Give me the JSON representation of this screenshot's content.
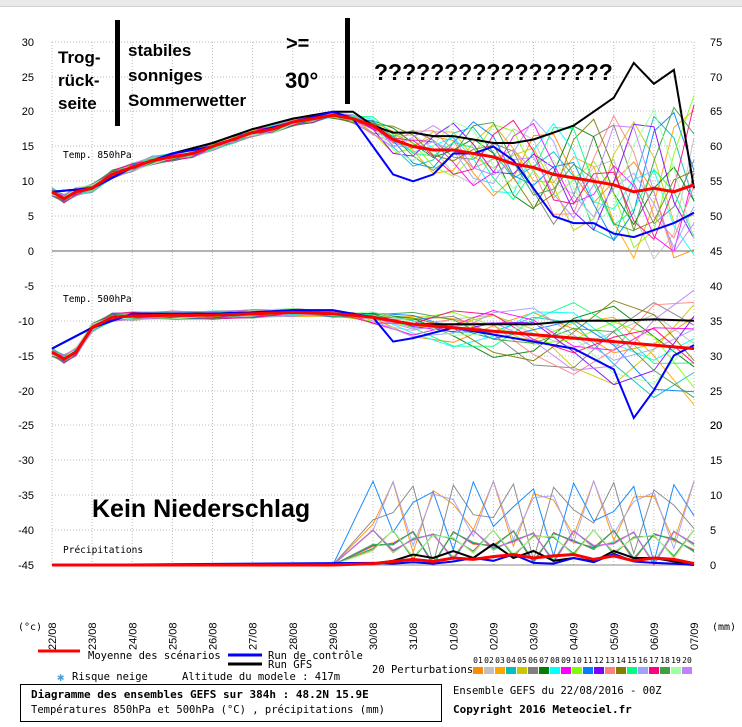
{
  "chart_data": {
    "type": "line",
    "title": "Diagramme des ensembles GEFS sur 384h : 48.2N 15.9E",
    "subtitle": "Températures 850hPa et 500hPa (°C) , précipitations (mm)",
    "ensemble_label": "Ensemble GEFS du 22/08/2016 - 00Z",
    "copyright": "Copyright 2016 Meteociel.fr",
    "altitude": "Altitude du modele : 417m",
    "left_unit": "(°c)",
    "right_unit": "(mm)",
    "x_ticks": [
      "22/08",
      "23/08",
      "24/08",
      "25/08",
      "26/08",
      "27/08",
      "28/08",
      "29/08",
      "30/08",
      "31/08",
      "01/09",
      "02/09",
      "03/09",
      "04/09",
      "05/09",
      "06/09",
      "07/09"
    ],
    "x_range": [
      0,
      16
    ],
    "panels": [
      {
        "name": "Temp. 850hPa",
        "left_ticks": [
          "30",
          "25",
          "20",
          "15",
          "10",
          "5",
          "0"
        ],
        "right_ticks": [
          "75",
          "70",
          "65",
          "60",
          "55",
          "50",
          "45"
        ],
        "ylim": [
          0,
          30
        ],
        "series": [
          {
            "name": "Moyenne des scénarios",
            "color": "#ff0000",
            "role": "mean",
            "x": [
              0,
              0.3,
              0.6,
              1,
              1.5,
              2,
              2.5,
              3,
              3.5,
              4,
              4.5,
              5,
              5.5,
              6,
              6.5,
              7,
              7.5,
              8,
              8.5,
              9,
              9.5,
              10,
              10.5,
              11,
              11.5,
              12,
              12.5,
              13,
              13.5,
              14,
              14.5,
              15,
              15.5,
              16
            ],
            "y": [
              8.5,
              7.5,
              8.5,
              9,
              11,
              12,
              13,
              13.5,
              14,
              15,
              16,
              17,
              17.5,
              18.5,
              19,
              19.5,
              19,
              18,
              16,
              15,
              14.5,
              14.5,
              14,
              13.5,
              12.5,
              12,
              11,
              10.5,
              10,
              9.5,
              8.5,
              9,
              8.5,
              9.5
            ]
          },
          {
            "name": "Run de contrôle",
            "color": "#0000ff",
            "role": "control",
            "x": [
              0,
              1,
              2,
              3,
              4,
              5,
              6,
              7,
              7.5,
              8,
              8.5,
              9,
              9.5,
              10,
              10.5,
              11,
              11.5,
              12,
              12.5,
              13,
              13.5,
              14,
              14.5,
              15,
              15.5,
              16
            ],
            "y": [
              8.5,
              9,
              12,
              14,
              15,
              17,
              18.5,
              20,
              19,
              15,
              11,
              10,
              11,
              14,
              14,
              15,
              13,
              9,
              5,
              4,
              4,
              2.5,
              2,
              3,
              4,
              5.5
            ]
          },
          {
            "name": "Run GFS",
            "color": "#000000",
            "role": "gfs",
            "x": [
              0,
              1,
              2,
              3,
              4,
              5,
              6,
              7,
              7.5,
              8,
              8.5,
              9,
              9.5,
              10,
              10.5,
              11,
              11.5,
              12,
              12.5,
              13,
              13.5,
              14,
              14.5,
              15,
              15.5,
              16
            ],
            "y": [
              8.5,
              9,
              12,
              14,
              15.5,
              17.5,
              19,
              20,
              20,
              18,
              17,
              17,
              16.5,
              16.5,
              16,
              15.5,
              15.5,
              16,
              17,
              18,
              20,
              22,
              27,
              24,
              26,
              9
            ]
          }
        ]
      },
      {
        "name": "Temp. 500hPa",
        "left_ticks": [
          "-5",
          "-10",
          "-15",
          "-20",
          "-25"
        ],
        "right_ticks": [
          "40",
          "35",
          "30",
          "25",
          "20"
        ],
        "ylim": [
          -28,
          -3
        ],
        "series": [
          {
            "name": "Moyenne des scénarios",
            "color": "#ff0000",
            "role": "mean",
            "x": [
              0,
              0.3,
              0.6,
              1,
              1.5,
              2,
              3,
              4,
              5,
              6,
              7,
              7.5,
              8,
              9,
              10,
              11,
              12,
              13,
              14,
              15,
              16
            ],
            "y": [
              -14.5,
              -15.5,
              -14.5,
              -11,
              -9.5,
              -9.3,
              -9.2,
              -9.2,
              -9,
              -8.8,
              -9,
              -9.2,
              -9.5,
              -10.5,
              -11,
              -11.5,
              -12,
              -12.5,
              -13,
              -13.5,
              -14
            ]
          },
          {
            "name": "Run de contrôle",
            "color": "#0000ff",
            "role": "control",
            "x": [
              0,
              1,
              2,
              3,
              4,
              5,
              6,
              7,
              8,
              8.5,
              9,
              10,
              11,
              12,
              13,
              14,
              14.5,
              15,
              15.5,
              16
            ],
            "y": [
              -14,
              -11,
              -9,
              -9,
              -9,
              -8.8,
              -8.5,
              -8.5,
              -9.5,
              -13,
              -12.5,
              -11,
              -12,
              -13,
              -14,
              -17,
              -24,
              -20,
              -15,
              -13.5
            ]
          },
          {
            "name": "Run GFS",
            "color": "#000000",
            "role": "gfs",
            "x": [
              0,
              1,
              2,
              3,
              4,
              5,
              6,
              7,
              8,
              9,
              10,
              11,
              12,
              13,
              14,
              15,
              16
            ],
            "y": [
              -14,
              -11,
              -9,
              -9,
              -9,
              -8.8,
              -8.5,
              -8.5,
              -9.5,
              -10.5,
              -10.5,
              -10.5,
              -10.5,
              -10,
              -10,
              -9.8,
              -10
            ]
          }
        ]
      },
      {
        "name": "Précipitations",
        "left_ticks": [
          "-30",
          "-35",
          "-40",
          "-45"
        ],
        "right_ticks": [
          "20",
          "15",
          "10",
          "5",
          "0"
        ],
        "ylim": [
          0,
          23
        ],
        "series": [
          {
            "name": "Moyenne des scénarios",
            "color": "#ff0000",
            "role": "mean",
            "x": [
              0,
              1,
              2,
              3,
              4,
              5,
              6,
              7,
              8,
              8.5,
              9,
              9.5,
              10,
              10.5,
              11,
              11.5,
              12,
              12.5,
              13,
              13.5,
              14,
              14.5,
              15,
              15.5,
              16
            ],
            "y": [
              0,
              0,
              0,
              0,
              0,
              0,
              0,
              0,
              0.2,
              0.5,
              0.8,
              0.5,
              1,
              0.8,
              1.2,
              1.5,
              1,
              1.3,
              1.5,
              0.8,
              1.3,
              0.6,
              1,
              0.8,
              0.2
            ]
          },
          {
            "name": "Run de contrôle",
            "color": "#0000ff",
            "role": "control",
            "x": [
              0,
              8,
              8.5,
              9,
              9.5,
              10,
              10.5,
              11,
              11.5,
              12,
              12.5,
              13,
              13.5,
              14,
              14.5,
              15,
              15.5,
              16
            ],
            "y": [
              0,
              0.3,
              0.2,
              0.4,
              0.2,
              0.5,
              1,
              0.6,
              1.5,
              0.3,
              0.2,
              1,
              0.4,
              1.6,
              0.5,
              0.3,
              0.2,
              0
            ]
          },
          {
            "name": "Run GFS",
            "color": "#000000",
            "role": "gfs",
            "x": [
              0,
              8,
              8.5,
              9,
              9.5,
              10,
              10.5,
              11,
              11.5,
              12,
              12.5,
              13,
              13.5,
              14,
              14.5,
              15,
              15.5,
              16
            ],
            "y": [
              0,
              0.2,
              0.6,
              1.5,
              1,
              2,
              1,
              3,
              1,
              2,
              0.6,
              1,
              0.5,
              2,
              1,
              1,
              0.5,
              0
            ]
          }
        ]
      }
    ],
    "legend": [
      {
        "label": "Moyenne des scénarios",
        "color": "#ff0000"
      },
      {
        "label": "Run de contrôle",
        "color": "#0000ff"
      },
      {
        "label": "Run GFS",
        "color": "#000000"
      }
    ],
    "perturbations_label": "20 Perturbations",
    "perturbations": [
      {
        "label": "01",
        "color": "#ff8c00"
      },
      {
        "label": "02",
        "color": "#c0c0c0"
      },
      {
        "label": "03",
        "color": "#ffa500"
      },
      {
        "label": "04",
        "color": "#00c0c0"
      },
      {
        "label": "05",
        "color": "#c8c800"
      },
      {
        "label": "06",
        "color": "#808080"
      },
      {
        "label": "07",
        "color": "#008000"
      },
      {
        "label": "08",
        "color": "#00ffff"
      },
      {
        "label": "09",
        "color": "#ff00ff"
      },
      {
        "label": "10",
        "color": "#80ff00"
      },
      {
        "label": "11",
        "color": "#0080ff"
      },
      {
        "label": "12",
        "color": "#8000ff"
      },
      {
        "label": "13",
        "color": "#ff8080"
      },
      {
        "label": "14",
        "color": "#808000"
      },
      {
        "label": "15",
        "color": "#00ff80"
      },
      {
        "label": "16",
        "color": "#a0a0ff"
      },
      {
        "label": "17",
        "color": "#ff0080"
      },
      {
        "label": "18",
        "color": "#40a040"
      },
      {
        "label": "19",
        "color": "#a0ffa0"
      },
      {
        "label": "20",
        "color": "#c080ff"
      }
    ],
    "risque_label": "Risque neige",
    "annotations": [
      {
        "name": "trog",
        "text": "Trog-\nrück-\nseite"
      },
      {
        "name": "stabiles",
        "text": "stabiles\nsonniges\nSommerwetter"
      },
      {
        "name": "hot",
        "text": ">=\n30°"
      },
      {
        "name": "question",
        "text": "?????????????????"
      },
      {
        "name": "no-precip",
        "text": "Kein Niederschlag"
      }
    ]
  }
}
